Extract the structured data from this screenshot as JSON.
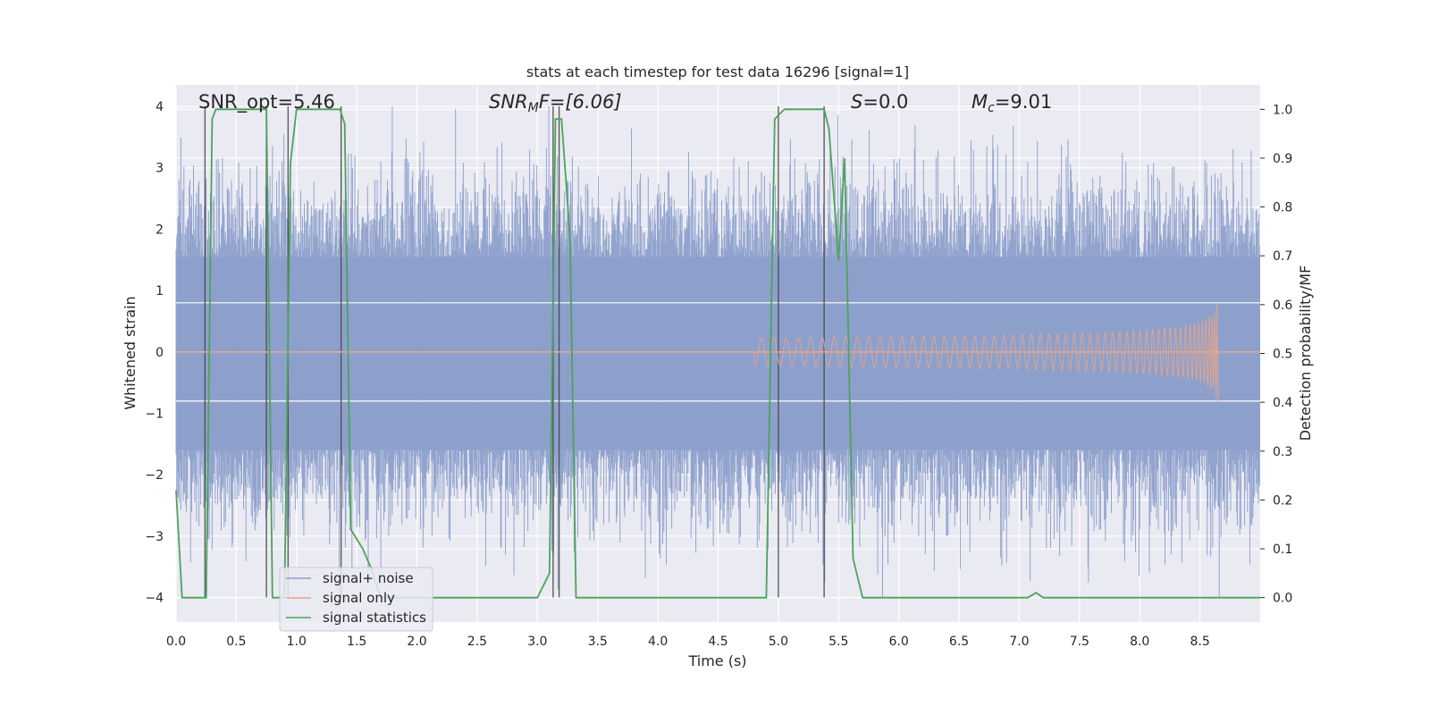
{
  "chart_data": {
    "type": "line",
    "title": "stats at each timestep for test data 16296 [signal=1]",
    "xlabel": "Time (s)",
    "ylabel_left": "Whitened strain",
    "ylabel_right": "Detection probability/MF",
    "xlim": [
      0.0,
      9.0
    ],
    "ylim_left": [
      -4.4,
      4.35
    ],
    "ylim_right": [
      -0.05,
      1.05
    ],
    "xticks": [
      "0.0",
      "0.5",
      "1.0",
      "1.5",
      "2.0",
      "2.5",
      "3.0",
      "3.5",
      "4.0",
      "4.5",
      "5.0",
      "5.5",
      "6.0",
      "6.5",
      "7.0",
      "7.5",
      "8.0",
      "8.5"
    ],
    "yticks_left": [
      "−4",
      "−3",
      "−2",
      "−1",
      "0",
      "1",
      "2",
      "3",
      "4"
    ],
    "yticks_right": [
      "0.0",
      "0.1",
      "0.2",
      "0.3",
      "0.4",
      "0.5",
      "0.6",
      "0.7",
      "0.8",
      "0.9",
      "1.0"
    ],
    "grid": true,
    "legend_placement": "lower-left",
    "annotations": {
      "snr_opt": "SNR_opt=5.46",
      "snr_mf_base": "SNR",
      "snr_mf_sub": "M",
      "snr_mf_rest": "F=[6.06]",
      "s_base": "S",
      "s_rest": "=0.0",
      "mc_base": "M",
      "mc_sub": "c",
      "mc_rest": "=9.01"
    },
    "series": [
      {
        "name": "signal+ noise",
        "color": "#8da0cb",
        "description_values": "whitened noise, amplitude approx ±2 to ±3"
      },
      {
        "name": "signal only",
        "color": "#e5a58a",
        "chirp_start": 4.8,
        "chirp_end": 8.65,
        "peak_amplitude": 0.9
      },
      {
        "name": "signal statistics",
        "color": "#4ca35a",
        "x": [
          0.0,
          0.05,
          0.25,
          0.3,
          0.33,
          0.38,
          0.7,
          0.75,
          0.8,
          0.9,
          0.95,
          1.0,
          1.36,
          1.4,
          1.45,
          1.55,
          1.62,
          1.7,
          2.2,
          2.5,
          3.0,
          3.1,
          3.15,
          3.2,
          3.27,
          3.32,
          4.9,
          4.97,
          5.05,
          5.15,
          5.38,
          5.42,
          5.5,
          5.55,
          5.62,
          5.7,
          5.75,
          7.07,
          7.14,
          7.2,
          9.0
        ],
        "y": [
          0.22,
          0.0,
          0.0,
          0.98,
          1.0,
          1.0,
          1.0,
          1.0,
          0.0,
          0.0,
          0.89,
          1.0,
          1.0,
          0.97,
          0.14,
          0.1,
          0.06,
          0.0,
          0.0,
          0.0,
          0.0,
          0.05,
          0.98,
          0.98,
          0.74,
          0.0,
          0.0,
          0.98,
          1.0,
          1.0,
          1.0,
          0.96,
          0.69,
          0.9,
          0.08,
          0.0,
          0.0,
          0.0,
          0.01,
          0.0,
          0.0
        ]
      }
    ],
    "vertical_lines_x": [
      0.24,
      0.75,
      0.93,
      1.37,
      3.13,
      3.18,
      5.0,
      5.38
    ]
  }
}
